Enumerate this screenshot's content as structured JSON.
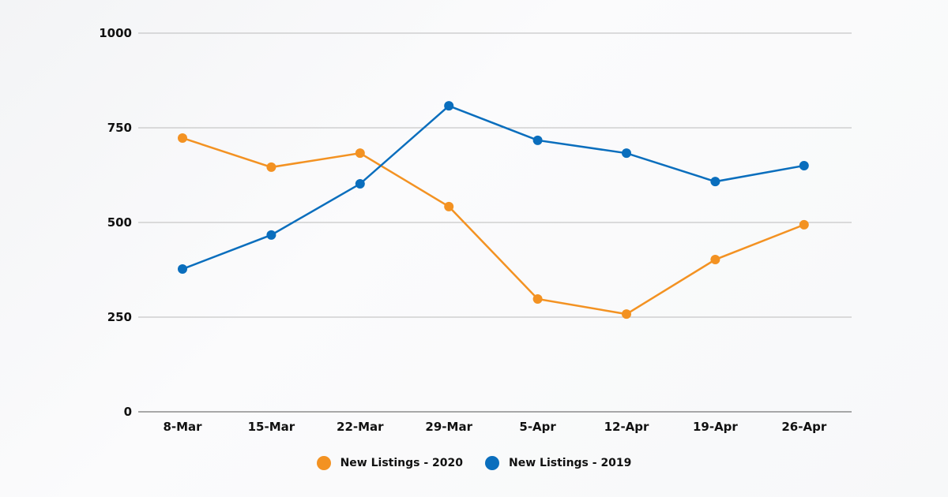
{
  "chart_data": {
    "type": "line",
    "title": "",
    "xlabel": "",
    "ylabel": "",
    "categories": [
      "8-Mar",
      "15-Mar",
      "22-Mar",
      "29-Mar",
      "5-Apr",
      "12-Apr",
      "19-Apr",
      "26-Apr"
    ],
    "ylim": [
      0,
      1000
    ],
    "yticks": [
      0,
      250,
      500,
      750,
      1000
    ],
    "grid": true,
    "legend_position": "bottom-center",
    "series": [
      {
        "name": "New Listings - 2020",
        "color": "#f39222",
        "values": [
          723,
          646,
          683,
          542,
          298,
          258,
          402,
          494
        ]
      },
      {
        "name": "New Listings - 2019",
        "color": "#0a6ebd",
        "values": [
          377,
          467,
          602,
          808,
          717,
          683,
          608,
          650
        ]
      }
    ]
  }
}
